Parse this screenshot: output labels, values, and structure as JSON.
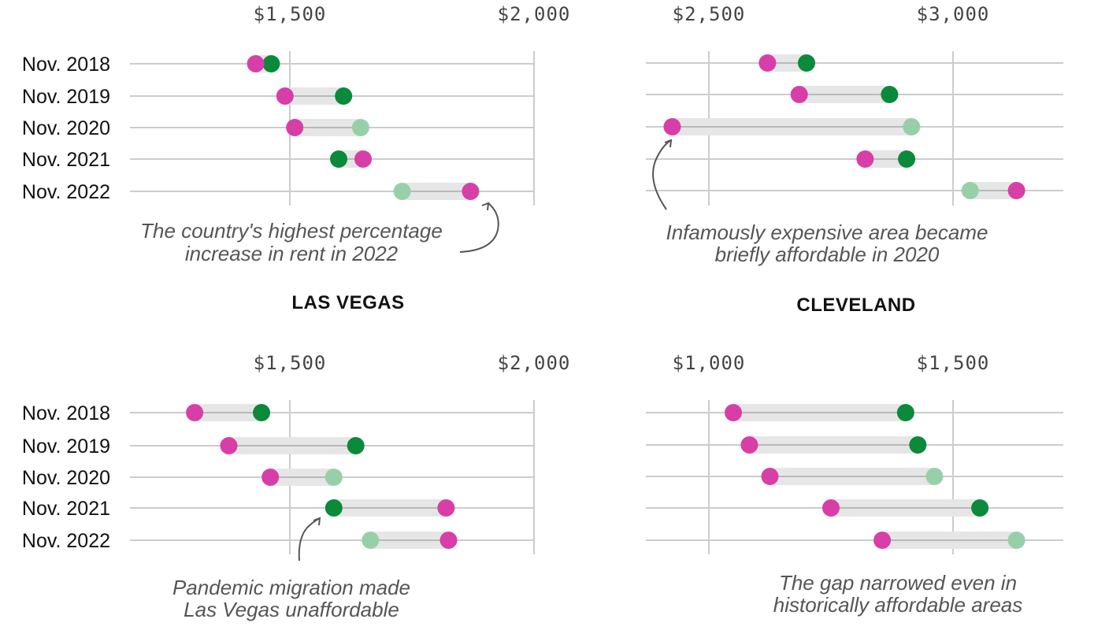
{
  "colors": {
    "magenta": "#d83ea8",
    "green": "#0a8a3a",
    "light_green": "#97d0a8",
    "band": "#e6e6e6",
    "grid": "#cccccc",
    "connector": "#aaaaaa"
  },
  "chart_data": [
    {
      "type": "dumbbell",
      "title": "",
      "categories": [
        "Nov. 2018",
        "Nov. 2019",
        "Nov. 2020",
        "Nov. 2021",
        "Nov. 2022"
      ],
      "xlim": [
        1350,
        2000
      ],
      "ticks": [
        {
          "value": 1500,
          "label": "$1,500"
        },
        {
          "value": 2000,
          "label": "$2,000"
        }
      ],
      "series": [
        {
          "values": [
            1430,
            1490,
            1510,
            1650,
            1870
          ],
          "color": "magenta"
        },
        {
          "values": [
            1462,
            1610,
            1645,
            1600,
            1730
          ],
          "color": [
            "green",
            "green",
            "light_green",
            "green",
            "light_green"
          ]
        }
      ],
      "annotation": {
        "lines": [
          "The country's highest percentage",
          "increase in rent in 2022"
        ]
      }
    },
    {
      "type": "dumbbell",
      "title": "CLEVELAND",
      "categories": [
        "Nov. 2018",
        "Nov. 2019",
        "Nov. 2020",
        "Nov. 2021",
        "Nov. 2022"
      ],
      "xlim": [
        2368,
        3000
      ],
      "ticks": [
        {
          "value": 2500,
          "label": "$2,500"
        },
        {
          "value": 3000,
          "label": "$3,000"
        }
      ],
      "series": [
        {
          "values": [
            2620,
            2685,
            2425,
            2820,
            3130
          ],
          "color": "magenta"
        },
        {
          "values": [
            2700,
            2870,
            2915,
            2905,
            3035
          ],
          "color": [
            "green",
            "green",
            "light_green",
            "green",
            "light_green"
          ]
        }
      ],
      "annotation": {
        "lines": [
          "Infamously expensive area became",
          "briefly affordable in 2020"
        ]
      }
    },
    {
      "type": "dumbbell",
      "title": "LAS VEGAS",
      "categories": [
        "Nov. 2018",
        "Nov. 2019",
        "Nov. 2020",
        "Nov. 2021",
        "Nov. 2022"
      ],
      "xlim": [
        1350,
        2000
      ],
      "ticks": [
        {
          "value": 1500,
          "label": "$1,500"
        },
        {
          "value": 2000,
          "label": "$2,000"
        }
      ],
      "series": [
        {
          "values": [
            1305,
            1375,
            1460,
            1820,
            1825
          ],
          "color": "magenta"
        },
        {
          "values": [
            1442,
            1635,
            1590,
            1590,
            1665
          ],
          "color": [
            "green",
            "green",
            "light_green",
            "green",
            "light_green"
          ]
        }
      ],
      "annotation": {
        "lines": [
          "Pandemic migration made",
          "Las Vegas unaffordable"
        ]
      }
    },
    {
      "type": "dumbbell",
      "title": "",
      "categories": [
        "Nov. 2018",
        "Nov. 2019",
        "Nov. 2020",
        "Nov. 2021",
        "Nov. 2022"
      ],
      "xlim": [
        868,
        1500
      ],
      "ticks": [
        {
          "value": 1000,
          "label": "$1,000"
        },
        {
          "value": 1500,
          "label": "$1,500"
        }
      ],
      "series": [
        {
          "values": [
            1050,
            1083,
            1125,
            1250,
            1355
          ],
          "color": "magenta"
        },
        {
          "values": [
            1403,
            1428,
            1462,
            1555,
            1630
          ],
          "color": [
            "green",
            "green",
            "light_green",
            "green",
            "light_green"
          ]
        }
      ],
      "annotation": {
        "lines": [
          "The gap narrowed even in",
          "historically affordable areas"
        ]
      }
    }
  ]
}
